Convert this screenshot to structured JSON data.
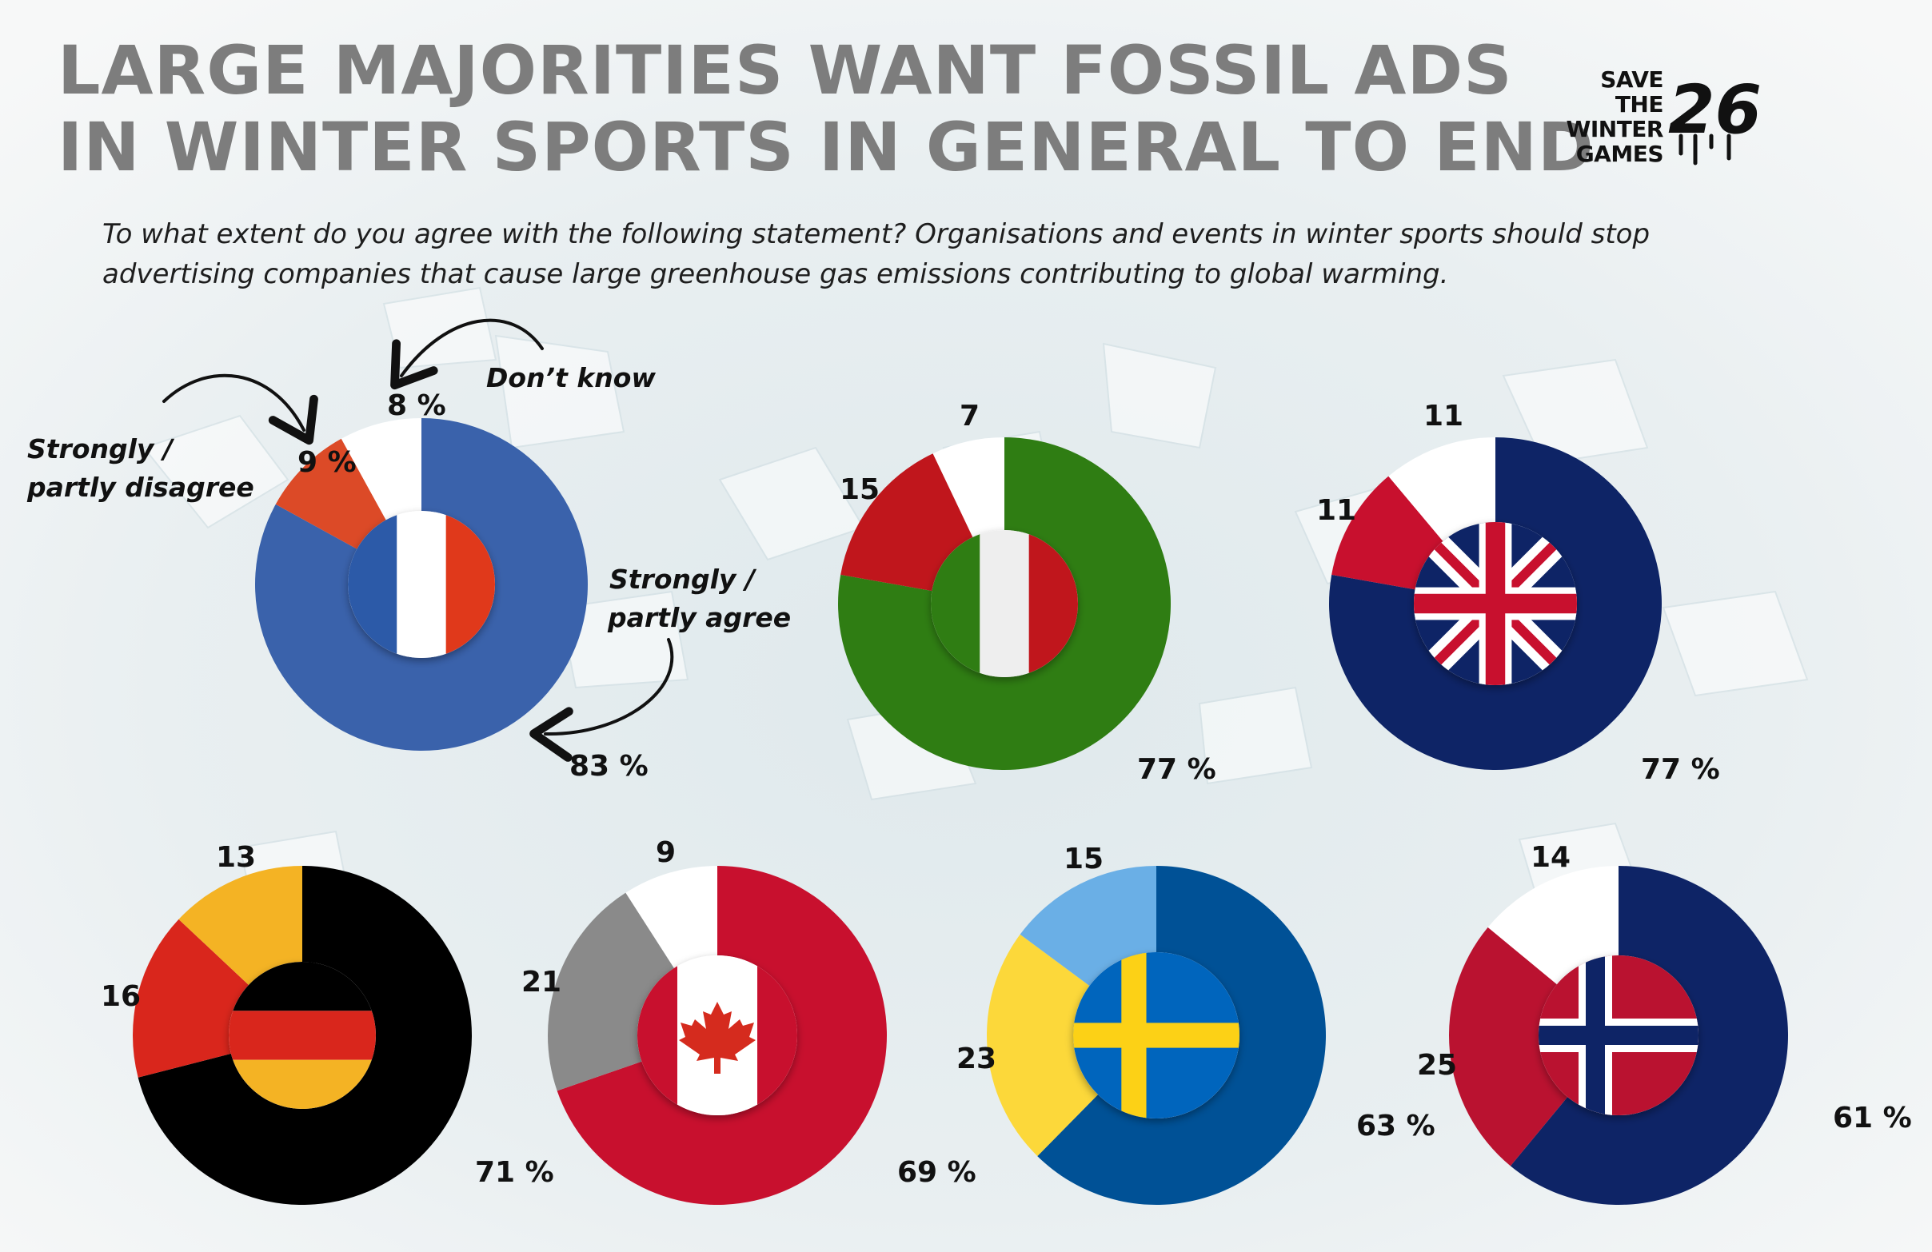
{
  "title": {
    "line1": "LARGE MAJORITIES WANT FOSSIL ADS",
    "line2": "IN WINTER SPORTS IN GENERAL TO END"
  },
  "subtitle": {
    "line1": "To what extent do you agree with the following statement? Organisations and events in winter sports should stop",
    "line2": "advertising companies that cause large greenhouse gas emissions contributing to global warming."
  },
  "logo": {
    "line1": "SAVE",
    "line2": "THE",
    "line3": "WINTER",
    "line4": "GAMES",
    "mark": "26"
  },
  "annotations": {
    "dont_know": "Don’t know",
    "disagree_line1": "Strongly  /",
    "disagree_line2": "partly disagree",
    "agree_line1": "Strongly /",
    "agree_line2": "partly agree"
  },
  "chart_data": {
    "type": "pie",
    "unit": "%",
    "segments": [
      "Strongly / partly agree",
      "Strongly / partly disagree",
      "Don’t know"
    ],
    "countries": [
      {
        "id": "france",
        "flag": "france",
        "agree": 83,
        "disagree": 9,
        "dont_know": 8,
        "labels": {
          "agree": "83 %",
          "disagree": "9 %",
          "dont_know": "8 %"
        },
        "colors": {
          "agree": "#3a62ab",
          "disagree": "#dc4a27",
          "dont_know": "#ffffff"
        }
      },
      {
        "id": "italy",
        "flag": "italy",
        "agree": 77,
        "disagree": 15,
        "dont_know": 7,
        "labels": {
          "agree": "77 %",
          "disagree": "15",
          "dont_know": "7"
        },
        "colors": {
          "agree": "#2f7d13",
          "disagree": "#c0161c",
          "dont_know": "#ffffff"
        }
      },
      {
        "id": "uk",
        "flag": "uk",
        "agree": 77,
        "disagree": 11,
        "dont_know": 11,
        "labels": {
          "agree": "77 %",
          "disagree": "11",
          "dont_know": "11"
        },
        "colors": {
          "agree": "#0e2466",
          "disagree": "#c8102e",
          "dont_know": "#ffffff"
        }
      },
      {
        "id": "germany",
        "flag": "germany",
        "agree": 71,
        "disagree": 16,
        "dont_know": 13,
        "labels": {
          "agree": "71 %",
          "disagree": "16",
          "dont_know": "13"
        },
        "colors": {
          "agree": "#000000",
          "disagree": "#d9261c",
          "dont_know": "#f4b324"
        }
      },
      {
        "id": "canada",
        "flag": "canada",
        "agree": 69,
        "disagree": 21,
        "dont_know": 9,
        "labels": {
          "agree": "69 %",
          "disagree": "21",
          "dont_know": "9"
        },
        "colors": {
          "agree": "#c8102e",
          "disagree": "#8a8a8a",
          "dont_know": "#ffffff"
        }
      },
      {
        "id": "sweden",
        "flag": "sweden",
        "agree": 63,
        "disagree": 23,
        "dont_know": 15,
        "labels": {
          "agree": "63 %",
          "disagree": "23",
          "dont_know": "15"
        },
        "colors": {
          "agree": "#005196",
          "disagree": "#fcd83a",
          "dont_know": "#6aafe6"
        }
      },
      {
        "id": "norway",
        "flag": "norway",
        "agree": 61,
        "disagree": 25,
        "dont_know": 14,
        "labels": {
          "agree": "61 %",
          "disagree": "25",
          "dont_know": "14"
        },
        "colors": {
          "agree": "#0e2466",
          "disagree": "#ba1230",
          "dont_know": "#ffffff"
        }
      }
    ]
  }
}
